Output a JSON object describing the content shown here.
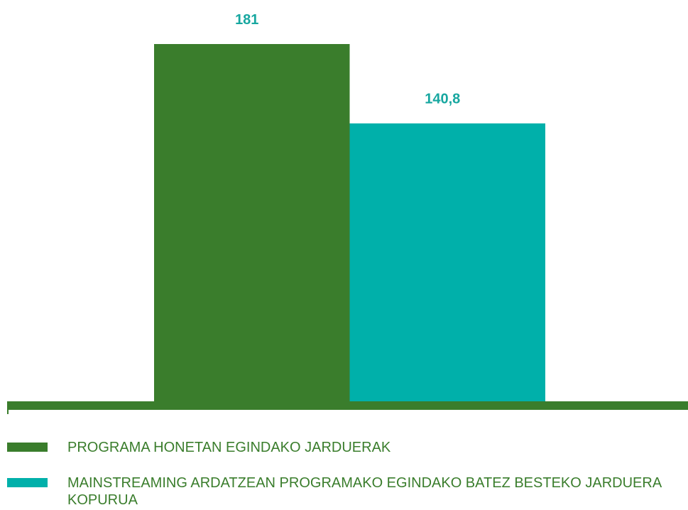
{
  "chart_data": {
    "type": "bar",
    "series": [
      {
        "name": "PROGRAMA HONETAN EGINDAKO JARDUERAK",
        "color": "#3a7d2c",
        "values": [
          181
        ]
      },
      {
        "name": "MAINSTREAMING ARDATZEAN PROGRAMAKO EGINDAKO BATEZ BESTEKO JARDUERA KOPURUA",
        "color": "#00b0aa",
        "values": [
          140.8
        ],
        "value_labels": [
          "140,8"
        ]
      }
    ]
  }
}
